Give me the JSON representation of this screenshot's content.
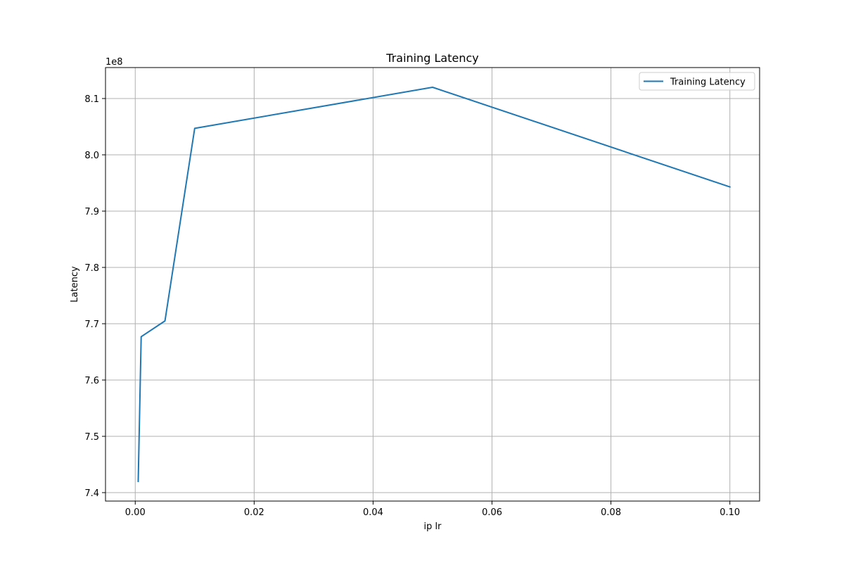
{
  "chart_data": {
    "type": "line",
    "title": "Training Latency",
    "xlabel": "ip lr",
    "ylabel": "Latency",
    "y_offset_text": "1e8",
    "xlim": [
      -0.005,
      0.105
    ],
    "ylim": [
      7.385,
      8.155
    ],
    "y_scale_factor": 100000000,
    "grid": true,
    "legend_position": "top-right",
    "x_ticks": [
      0.0,
      0.02,
      0.04,
      0.06,
      0.08,
      0.1
    ],
    "x_tick_labels": [
      "0.00",
      "0.02",
      "0.04",
      "0.06",
      "0.08",
      "0.10"
    ],
    "y_ticks": [
      7.4,
      7.5,
      7.6,
      7.7,
      7.8,
      7.9,
      8.0,
      8.1
    ],
    "y_tick_labels": [
      "7.4",
      "7.5",
      "7.6",
      "7.7",
      "7.8",
      "7.9",
      "8.0",
      "8.1"
    ],
    "series": [
      {
        "name": "Training Latency",
        "color": "#1f77b4",
        "x": [
          0.0005,
          0.001,
          0.005,
          0.01,
          0.05,
          0.1
        ],
        "y": [
          742000000,
          767700000,
          770500000,
          804700000,
          812000000,
          794300000
        ]
      }
    ]
  }
}
